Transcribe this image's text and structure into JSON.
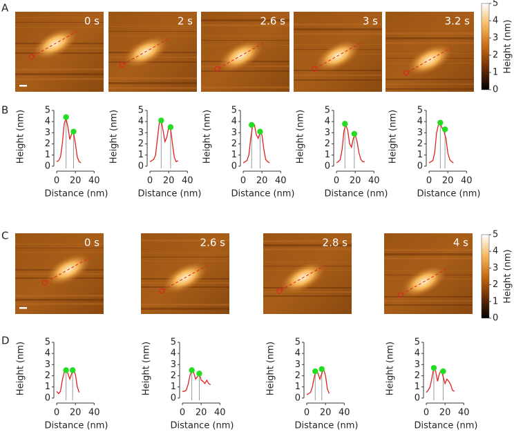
{
  "panels": [
    "A",
    "B",
    "C",
    "D"
  ],
  "image_rows": [
    {
      "times": [
        "0 s",
        "2 s",
        "2.6 s",
        "3 s",
        "3.2 s"
      ]
    },
    {
      "times": [
        "0 s",
        "2.6 s",
        "2.8 s",
        "4 s"
      ]
    }
  ],
  "colorbars": [
    {
      "label": "Height (nm)",
      "ylim": [
        0,
        5
      ],
      "yticks": [
        0,
        1,
        2,
        3,
        4,
        5
      ]
    },
    {
      "label": "Height (nm)",
      "ylim": [
        0,
        5
      ],
      "yticks": [
        0,
        1,
        2,
        3,
        4,
        5
      ]
    }
  ],
  "chart_data": [
    {
      "type": "line",
      "xlabel": "Distance (nm)",
      "ylabel": "Height (nm)",
      "xlim": [
        -3,
        42
      ],
      "ylim": [
        -0.2,
        5
      ],
      "xticks": [
        0,
        20,
        40
      ],
      "yticks": [
        0,
        1,
        2,
        3,
        4,
        5
      ],
      "series": [
        {
          "color": "#e0201b",
          "x": [
            0,
            2,
            4,
            6,
            8,
            10,
            12,
            14,
            16,
            18,
            20,
            22,
            24,
            26
          ],
          "values": [
            0.4,
            0.5,
            0.8,
            2.0,
            3.8,
            4.3,
            3.5,
            2.4,
            2.9,
            3.0,
            2.0,
            0.8,
            0.4,
            0.3
          ]
        }
      ],
      "peaks": {
        "color": "#22dd22",
        "x": [
          10,
          18
        ],
        "values": [
          4.4,
          3.1
        ]
      }
    },
    {
      "type": "line",
      "xlabel": "Distance (nm)",
      "ylabel": "Height (nm)",
      "xlim": [
        -3,
        42
      ],
      "ylim": [
        -0.2,
        5
      ],
      "xticks": [
        0,
        20,
        40
      ],
      "yticks": [
        0,
        1,
        2,
        3,
        4,
        5
      ],
      "series": [
        {
          "color": "#e0201b",
          "x": [
            0,
            2,
            4,
            6,
            8,
            10,
            12,
            14,
            16,
            18,
            20,
            22,
            24,
            26,
            28,
            30
          ],
          "values": [
            0.4,
            0.5,
            0.6,
            1.0,
            2.5,
            3.9,
            4.1,
            3.2,
            2.2,
            2.6,
            3.5,
            3.4,
            2.0,
            0.8,
            0.4,
            0.5
          ]
        }
      ],
      "peaks": {
        "color": "#22dd22",
        "x": [
          12,
          22
        ],
        "values": [
          4.1,
          3.5
        ]
      }
    },
    {
      "type": "line",
      "xlabel": "Distance (nm)",
      "ylabel": "Height (nm)",
      "xlim": [
        -3,
        42
      ],
      "ylim": [
        -0.2,
        5
      ],
      "xticks": [
        0,
        20,
        40
      ],
      "yticks": [
        0,
        1,
        2,
        3,
        4,
        5
      ],
      "series": [
        {
          "color": "#e0201b",
          "x": [
            0,
            2,
            4,
            6,
            8,
            10,
            12,
            14,
            16,
            18,
            20,
            22,
            24,
            26,
            28
          ],
          "values": [
            0.3,
            0.4,
            0.5,
            1.0,
            2.5,
            3.6,
            3.7,
            2.8,
            2.5,
            3.0,
            2.8,
            1.5,
            0.6,
            0.4,
            0.3
          ]
        }
      ],
      "peaks": {
        "color": "#22dd22",
        "x": [
          9,
          18
        ],
        "values": [
          3.7,
          3.1
        ]
      }
    },
    {
      "type": "line",
      "xlabel": "Distance (nm)",
      "ylabel": "Height (nm)",
      "xlim": [
        -3,
        42
      ],
      "ylim": [
        -0.2,
        5
      ],
      "xticks": [
        0,
        20,
        40
      ],
      "yticks": [
        0,
        1,
        2,
        3,
        4,
        5
      ],
      "series": [
        {
          "color": "#e0201b",
          "x": [
            0,
            2,
            4,
            6,
            8,
            10,
            12,
            14,
            16,
            18,
            20,
            22,
            24,
            26,
            28,
            30
          ],
          "values": [
            0.3,
            0.4,
            0.6,
            1.5,
            3.2,
            3.7,
            3.2,
            2.0,
            1.7,
            2.5,
            2.8,
            2.2,
            1.2,
            0.6,
            0.4,
            0.4
          ]
        }
      ],
      "peaks": {
        "color": "#22dd22",
        "x": [
          9,
          19
        ],
        "values": [
          3.8,
          2.9
        ]
      }
    },
    {
      "type": "line",
      "xlabel": "Distance (nm)",
      "ylabel": "Height (nm)",
      "xlim": [
        -3,
        42
      ],
      "ylim": [
        -0.2,
        5
      ],
      "xticks": [
        0,
        20,
        40
      ],
      "yticks": [
        0,
        1,
        2,
        3,
        4,
        5
      ],
      "series": [
        {
          "color": "#e0201b",
          "x": [
            0,
            2,
            4,
            6,
            8,
            10,
            12,
            14,
            16,
            18,
            20,
            22,
            24,
            26
          ],
          "values": [
            0.3,
            0.4,
            0.5,
            1.2,
            3.0,
            3.7,
            3.8,
            3.4,
            3.1,
            2.5,
            1.2,
            0.6,
            0.4,
            0.3
          ]
        }
      ],
      "peaks": {
        "color": "#22dd22",
        "x": [
          12,
          17
        ],
        "values": [
          3.9,
          3.3
        ]
      }
    },
    {
      "type": "line",
      "xlabel": "Distance (nm)",
      "ylabel": "Height (nm)",
      "xlim": [
        -3,
        42
      ],
      "ylim": [
        -0.2,
        5
      ],
      "xticks": [
        0,
        20,
        40
      ],
      "yticks": [
        0,
        1,
        2,
        3,
        4,
        5
      ],
      "series": [
        {
          "color": "#e0201b",
          "x": [
            0,
            2,
            4,
            6,
            8,
            10,
            12,
            14,
            16,
            18,
            20,
            22,
            24
          ],
          "values": [
            0.6,
            0.4,
            0.6,
            1.6,
            2.3,
            2.5,
            2.2,
            1.7,
            2.2,
            2.5,
            2.1,
            1.0,
            0.5
          ]
        }
      ],
      "peaks": {
        "color": "#22dd22",
        "x": [
          10,
          17
        ],
        "values": [
          2.5,
          2.5
        ]
      }
    },
    {
      "type": "line",
      "xlabel": "Distance (nm)",
      "ylabel": "Height (nm)",
      "xlim": [
        -3,
        42
      ],
      "ylim": [
        -0.2,
        5
      ],
      "xticks": [
        0,
        20,
        40
      ],
      "yticks": [
        0,
        1,
        2,
        3,
        4,
        5
      ],
      "series": [
        {
          "color": "#e0201b",
          "x": [
            0,
            2,
            4,
            6,
            8,
            10,
            12,
            14,
            16,
            18,
            20,
            22,
            24,
            26,
            28,
            30
          ],
          "values": [
            0.6,
            0.6,
            0.7,
            1.2,
            2.0,
            2.5,
            2.3,
            1.7,
            1.9,
            2.2,
            1.6,
            1.5,
            1.3,
            1.6,
            1.3,
            1.2
          ]
        }
      ],
      "peaks": {
        "color": "#22dd22",
        "x": [
          10,
          18
        ],
        "values": [
          2.5,
          2.2
        ]
      }
    },
    {
      "type": "line",
      "xlabel": "Distance (nm)",
      "ylabel": "Height (nm)",
      "xlim": [
        -3,
        42
      ],
      "ylim": [
        -0.2,
        5
      ],
      "xticks": [
        0,
        20,
        40
      ],
      "yticks": [
        0,
        1,
        2,
        3,
        4,
        5
      ],
      "series": [
        {
          "color": "#e0201b",
          "x": [
            0,
            2,
            4,
            6,
            8,
            10,
            12,
            14,
            16,
            18,
            20,
            22,
            24
          ],
          "values": [
            0.3,
            0.4,
            0.5,
            1.0,
            1.9,
            2.5,
            2.2,
            1.7,
            2.2,
            2.6,
            2.0,
            0.8,
            0.4
          ]
        }
      ],
      "peaks": {
        "color": "#22dd22",
        "x": [
          9,
          16
        ],
        "values": [
          2.4,
          2.6
        ]
      }
    },
    {
      "type": "line",
      "xlabel": "Distance (nm)",
      "ylabel": "Height (nm)",
      "xlim": [
        -3,
        42
      ],
      "ylim": [
        -0.2,
        5
      ],
      "xticks": [
        0,
        20,
        40
      ],
      "yticks": [
        0,
        1,
        2,
        3,
        4,
        5
      ],
      "series": [
        {
          "color": "#e0201b",
          "x": [
            0,
            2,
            4,
            6,
            8,
            10,
            12,
            14,
            16,
            18,
            20,
            22,
            24,
            26,
            28,
            30
          ],
          "values": [
            0.5,
            0.7,
            1.0,
            1.8,
            2.7,
            2.4,
            1.5,
            2.2,
            2.5,
            1.9,
            1.3,
            1.7,
            1.5,
            1.2,
            0.7,
            0.6
          ]
        }
      ],
      "peaks": {
        "color": "#22dd22",
        "x": [
          8,
          18
        ],
        "values": [
          2.7,
          2.4
        ]
      }
    }
  ]
}
